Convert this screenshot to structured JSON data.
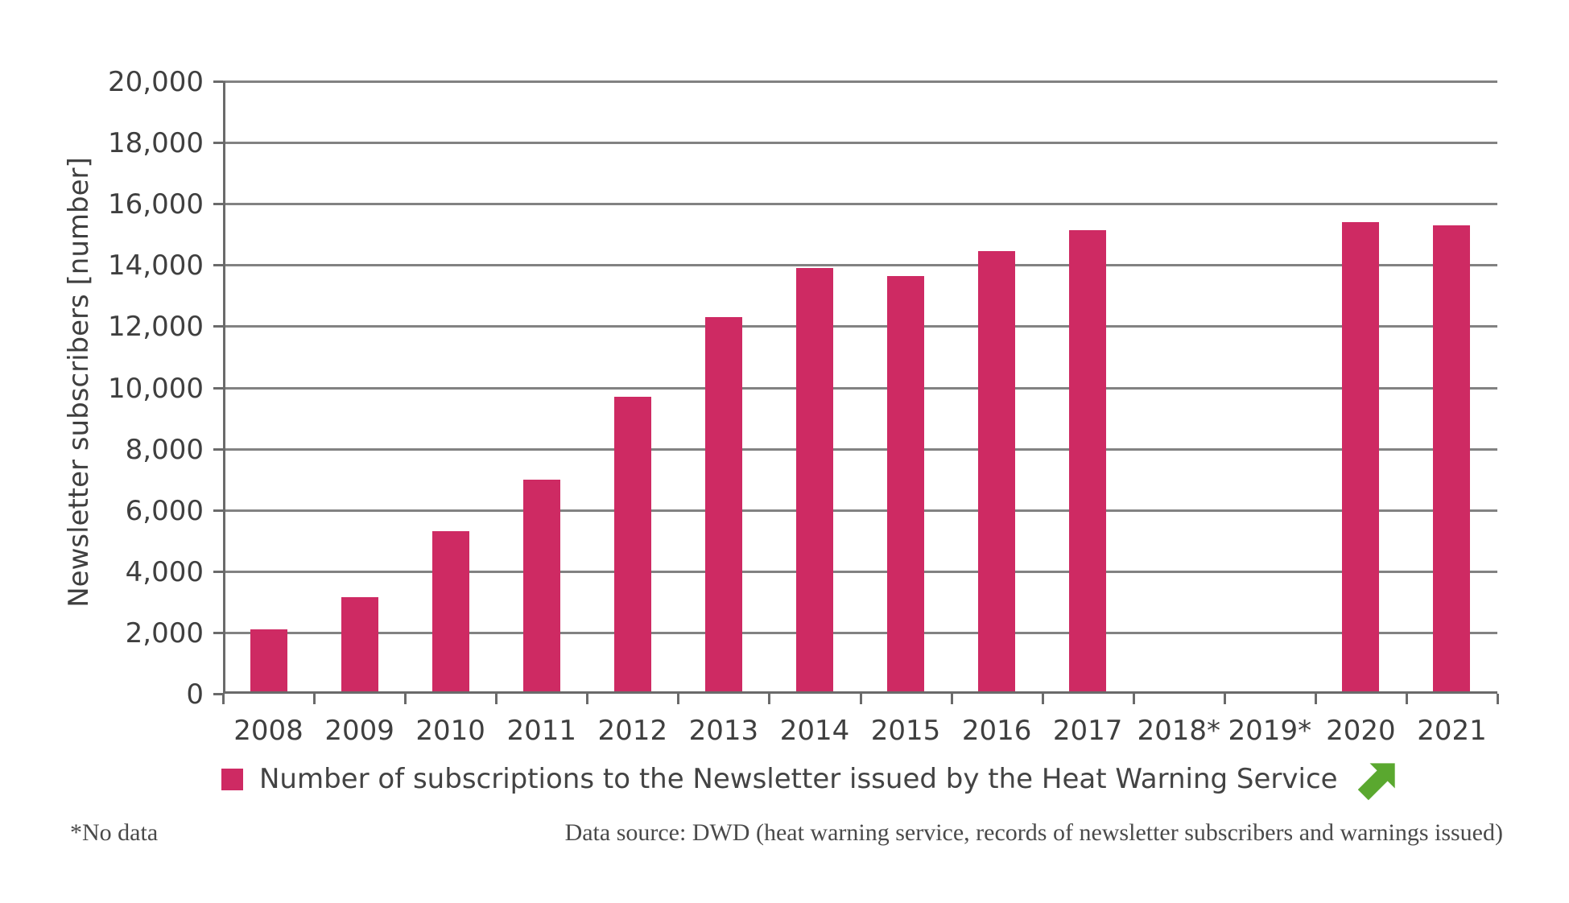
{
  "chart_data": {
    "type": "bar",
    "title": "",
    "ylabel": "Newsletter subscribers [number]",
    "xlabel": "",
    "categories": [
      "2008",
      "2009",
      "2010",
      "2011",
      "2012",
      "2013",
      "2014",
      "2015",
      "2016",
      "2017",
      "2018*",
      "2019*",
      "2020",
      "2021"
    ],
    "values": [
      2100,
      3150,
      5300,
      7000,
      9700,
      12300,
      13900,
      13650,
      14450,
      15150,
      null,
      null,
      15400,
      15300
    ],
    "ylim": [
      0,
      20000
    ],
    "ytick_step": 2000,
    "ytick_labels": [
      "0",
      "2,000",
      "4,000",
      "6,000",
      "8,000",
      "10,000",
      "12,000",
      "14,000",
      "16,000",
      "18,000",
      "20,000"
    ],
    "grid": "horizontal",
    "legend_position": "bottom",
    "series_name": "Number of subscriptions to the Newsletter issued by the Heat Warning Service"
  },
  "legend": {
    "label": "Number of subscriptions to the Newsletter issued by the Heat Warning Service",
    "swatch_color": "#ce2a63",
    "trend_icon": "arrow-up-right",
    "trend_icon_color": "#5aa82f"
  },
  "footer": {
    "note": "*No data",
    "source": "Data source: DWD (heat warning service, records of newsletter subscribers and warnings issued)"
  },
  "colors": {
    "bar": "#ce2a63",
    "gridline": "#828282",
    "axis": "#6a6a6a",
    "text": "#3f3f3f",
    "footer_text": "#4a4a4a",
    "arrow_green": "#5aa82f",
    "background": "#ffffff"
  }
}
